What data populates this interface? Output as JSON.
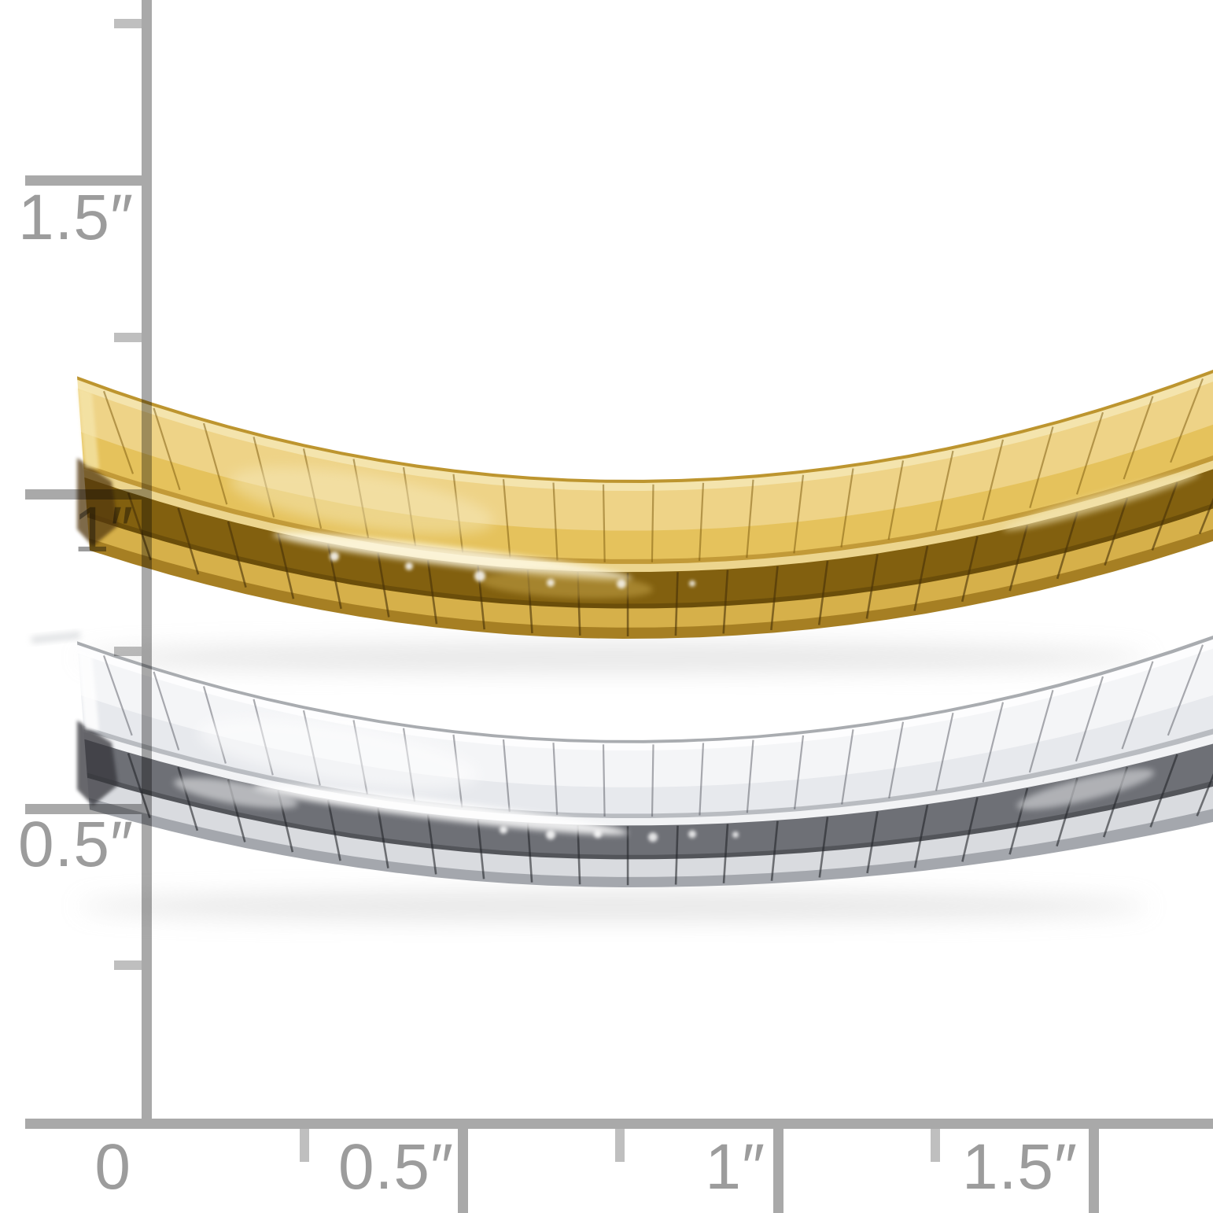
{
  "photo": {
    "items": [
      "yellow-gold-omega-chain-necklace",
      "white-gold-omega-chain-necklace"
    ]
  },
  "ruler": {
    "vertical_labels": [
      "1.5″",
      "1″",
      "0.5″"
    ],
    "horizontal_labels": [
      "0",
      "0.5″",
      "1″",
      "1.5″"
    ]
  },
  "colors": {
    "background": "#ffffff",
    "ruler": "#a9a9a9",
    "ruler_minor": "#bfbfbf",
    "ruler_label": "#9c9c9c",
    "gold_palette": [
      "#bd952f",
      "#f4e4ad",
      "#eed387",
      "#e5c25c",
      "#c29a38",
      "#ecd58e",
      "#82600f",
      "#6b4e0a",
      "#d6b04a",
      "#a67f23"
    ],
    "silver_palette": [
      "#a9acb0",
      "#fdfdfe",
      "#f4f5f7",
      "#e7e9ed",
      "#b9bcc1",
      "#f2f3f5",
      "#6e7076",
      "#53555a",
      "#d9dbdf",
      "#a4a7ad"
    ]
  }
}
